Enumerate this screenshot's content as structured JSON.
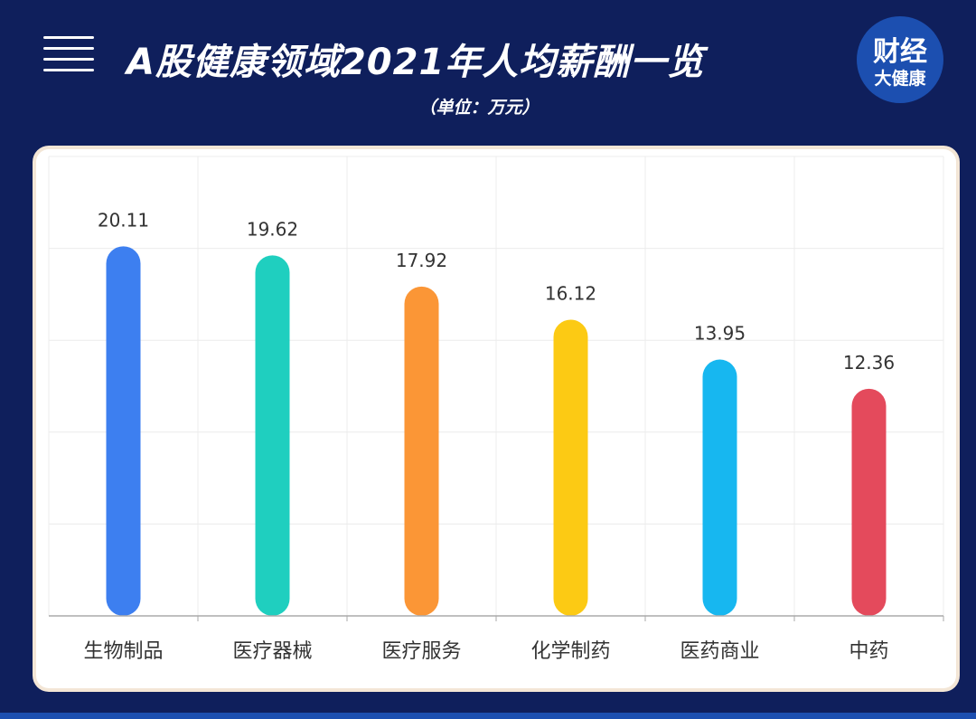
{
  "header": {
    "title": "A股健康领域2021年人均薪酬一览",
    "unit": "（单位：万元）",
    "logo_line1": "财经",
    "logo_line2": "大健康"
  },
  "chart_data": {
    "type": "bar",
    "categories": [
      "生物制品",
      "医疗器械",
      "医疗服务",
      "化学制药",
      "医药商业",
      "中药"
    ],
    "values": [
      20.11,
      19.62,
      17.92,
      16.12,
      13.95,
      12.36
    ],
    "value_labels": [
      "20.11",
      "19.62",
      "17.92",
      "16.12",
      "13.95",
      "12.36"
    ],
    "colors": [
      "#3d7ff0",
      "#1fcfbf",
      "#fb9636",
      "#fcca14",
      "#17b7f0",
      "#e44a5c"
    ],
    "ylim": [
      0,
      25
    ],
    "grid": true,
    "title": "",
    "xlabel": "",
    "ylabel": ""
  }
}
